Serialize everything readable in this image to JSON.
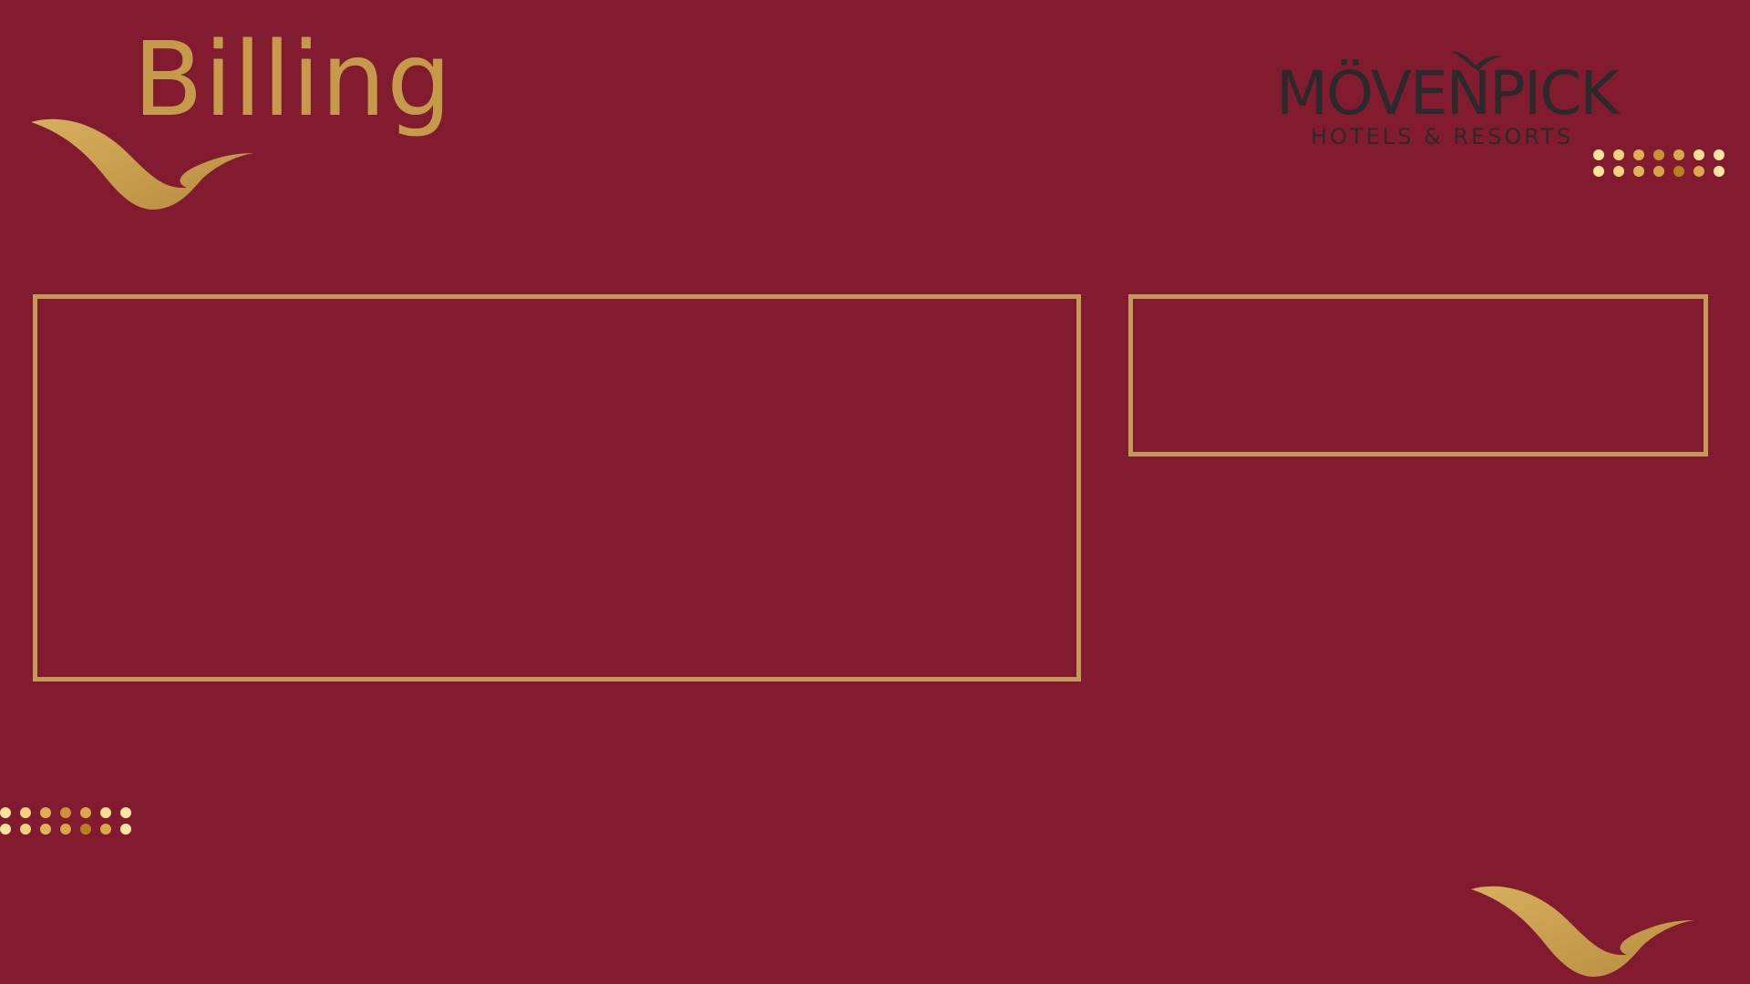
{
  "header": {
    "title": "Billing"
  },
  "brand": {
    "name": "MÖVENPICK",
    "tagline": "HOTELS & RESORTS",
    "logo_color": "#2b2a2a"
  },
  "colors": {
    "background": "#831b30",
    "accent_gold": "#c59b4b",
    "panel_border": "#c39a57"
  },
  "decorations": {
    "icons": [
      "swoosh-icon",
      "dot-pattern-icon"
    ],
    "dot_colors": [
      "#f7e39a",
      "#f2d27c",
      "#deb052",
      "#c99434",
      "#b77f22",
      "#d9a94a",
      "#f7e6a0"
    ]
  },
  "panels": {
    "main": {
      "content": ""
    },
    "side": {
      "content": ""
    }
  }
}
